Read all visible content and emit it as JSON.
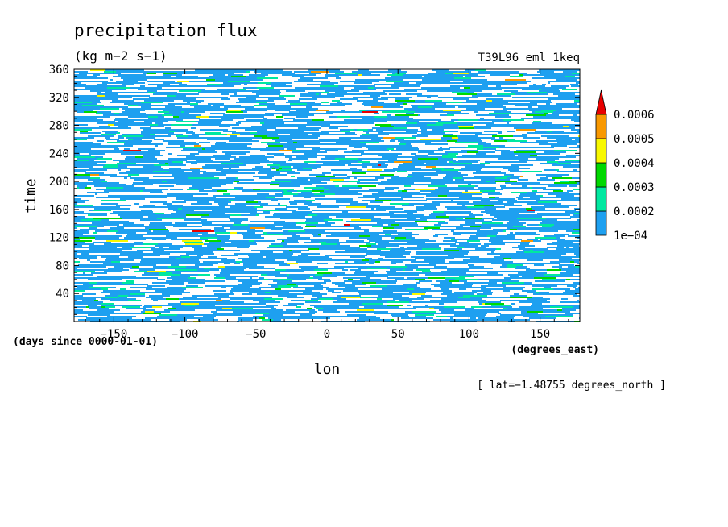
{
  "chart_data": {
    "type": "heatmap",
    "title": "precipitation flux",
    "units": "(kg m−2 s−1)",
    "dataset": "T39L96_eml_1keq",
    "xlabel": "lon",
    "xunits": "(degrees_east)",
    "ylabel": "time",
    "yunits": "(days since 0000-01-01)",
    "annotation": "[ lat=−1.48755 degrees_north ]",
    "xlim": [
      -178,
      178
    ],
    "ylim": [
      0,
      360
    ],
    "xticks": [
      -150,
      -100,
      -50,
      0,
      50,
      100,
      150
    ],
    "xtick_labels": [
      "−150",
      "−100",
      "−50",
      "0",
      "50",
      "100",
      "150"
    ],
    "yticks": [
      40,
      80,
      120,
      160,
      200,
      240,
      280,
      320,
      360
    ],
    "ytick_labels": [
      "40",
      "80",
      "120",
      "160",
      "200",
      "240",
      "280",
      "320",
      "360"
    ],
    "colorbar": {
      "labels": [
        "1e−04",
        "0.0002",
        "0.0003",
        "0.0004",
        "0.0005",
        "0.0006"
      ],
      "levels": [
        0.0001,
        0.0002,
        0.0003,
        0.0004,
        0.0005,
        0.0006
      ],
      "colors": [
        "#1ea0f0",
        "#00e8a0",
        "#00d800",
        "#f8f800",
        "#f89800",
        "#e80000"
      ],
      "extend": "max"
    },
    "field_coverage_approx": {
      "below_1e-04_white": 0.35,
      "1e-04_to_2e-04": 0.57,
      "2e-04_to_3e-04": 0.05,
      "3e-04_to_4e-04": 0.02,
      "above_4e-04": 0.01
    }
  }
}
